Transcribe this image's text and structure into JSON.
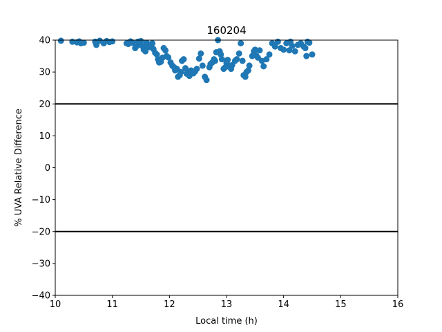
{
  "chart_data": {
    "type": "scatter",
    "title": "160204",
    "xlabel": "Local time (h)",
    "ylabel": "% UVA Relative Difference",
    "xlim": [
      10,
      16
    ],
    "ylim": [
      -40,
      40
    ],
    "xticks": [
      10,
      11,
      12,
      13,
      14,
      15,
      16
    ],
    "yticks": [
      -40,
      -30,
      -20,
      -10,
      0,
      10,
      20,
      30,
      40
    ],
    "xtick_labels": [
      "10",
      "11",
      "12",
      "13",
      "14",
      "15",
      "16"
    ],
    "ytick_labels": [
      "−40",
      "−30",
      "−20",
      "−10",
      "0",
      "10",
      "20",
      "30",
      "40"
    ],
    "reference_lines": [
      20,
      -20
    ],
    "grid": false,
    "marker_color": "#1f77b4",
    "line_color": "#000000",
    "series": [
      {
        "x": [
          10.1,
          10.3,
          10.38,
          10.42,
          10.45,
          10.5,
          10.7,
          10.72,
          10.78,
          10.85,
          10.9,
          10.95,
          11.0,
          11.25,
          11.28,
          11.32,
          11.35,
          11.4,
          11.42,
          11.45,
          11.48,
          11.5,
          11.52,
          11.55,
          11.58,
          11.6,
          11.62,
          11.65,
          11.68,
          11.7,
          11.72,
          11.75,
          11.78,
          11.8,
          11.82,
          11.85,
          11.88,
          11.9,
          11.93,
          11.95,
          11.98,
          12.02,
          12.05,
          12.08,
          12.1,
          12.13,
          12.15,
          12.18,
          12.2,
          12.22,
          12.25,
          12.28,
          12.3,
          12.33,
          12.35,
          12.38,
          12.42,
          12.45,
          12.48,
          12.52,
          12.55,
          12.58,
          12.62,
          12.65,
          12.7,
          12.72,
          12.75,
          12.78,
          12.8,
          12.82,
          12.85,
          12.88,
          12.9,
          12.92,
          12.95,
          12.98,
          13.0,
          13.02,
          13.05,
          13.08,
          13.1,
          13.15,
          13.18,
          13.22,
          13.25,
          13.28,
          13.3,
          13.33,
          13.35,
          13.38,
          13.4,
          13.45,
          13.48,
          13.5,
          13.52,
          13.55,
          13.58,
          13.62,
          13.65,
          13.7,
          13.75,
          13.8,
          13.85,
          13.9,
          13.95,
          14.0,
          14.05,
          14.1,
          14.12,
          14.15,
          14.2,
          14.25,
          14.3,
          14.35,
          14.38,
          14.4,
          14.42,
          14.45,
          14.5
        ],
        "y": [
          39.8,
          39.5,
          39.3,
          39.6,
          39.0,
          39.2,
          39.5,
          38.5,
          39.8,
          39.0,
          39.7,
          39.4,
          39.6,
          39.0,
          38.8,
          39.6,
          39.2,
          37.5,
          38.0,
          39.5,
          38.8,
          39.7,
          38.2,
          37.0,
          36.5,
          39.2,
          38.0,
          37.8,
          38.6,
          39.0,
          37.2,
          36.0,
          35.5,
          34.0,
          33.0,
          33.2,
          34.5,
          37.5,
          36.8,
          35.0,
          34.6,
          33.0,
          32.0,
          31.5,
          30.5,
          31.0,
          28.5,
          29.0,
          30.0,
          33.5,
          34.0,
          31.2,
          29.5,
          30.0,
          28.8,
          30.5,
          29.6,
          30.2,
          31.0,
          34.2,
          35.8,
          32.0,
          28.5,
          27.5,
          31.5,
          32.5,
          33.0,
          34.0,
          33.5,
          36.2,
          40.2,
          36.5,
          35.5,
          34.0,
          31.0,
          31.5,
          32.8,
          33.8,
          32.0,
          31.0,
          32.2,
          33.5,
          34.0,
          35.8,
          39.0,
          33.5,
          29.0,
          28.5,
          30.0,
          30.5,
          32.0,
          35.0,
          36.5,
          37.0,
          35.2,
          34.5,
          36.8,
          33.5,
          31.8,
          34.0,
          35.5,
          39.0,
          38.0,
          39.5,
          37.5,
          37.0,
          39.0,
          36.8,
          39.5,
          38.2,
          36.5,
          38.5,
          39.0,
          38.0,
          37.5,
          35.0,
          39.5,
          39.2,
          35.5
        ]
      }
    ]
  }
}
